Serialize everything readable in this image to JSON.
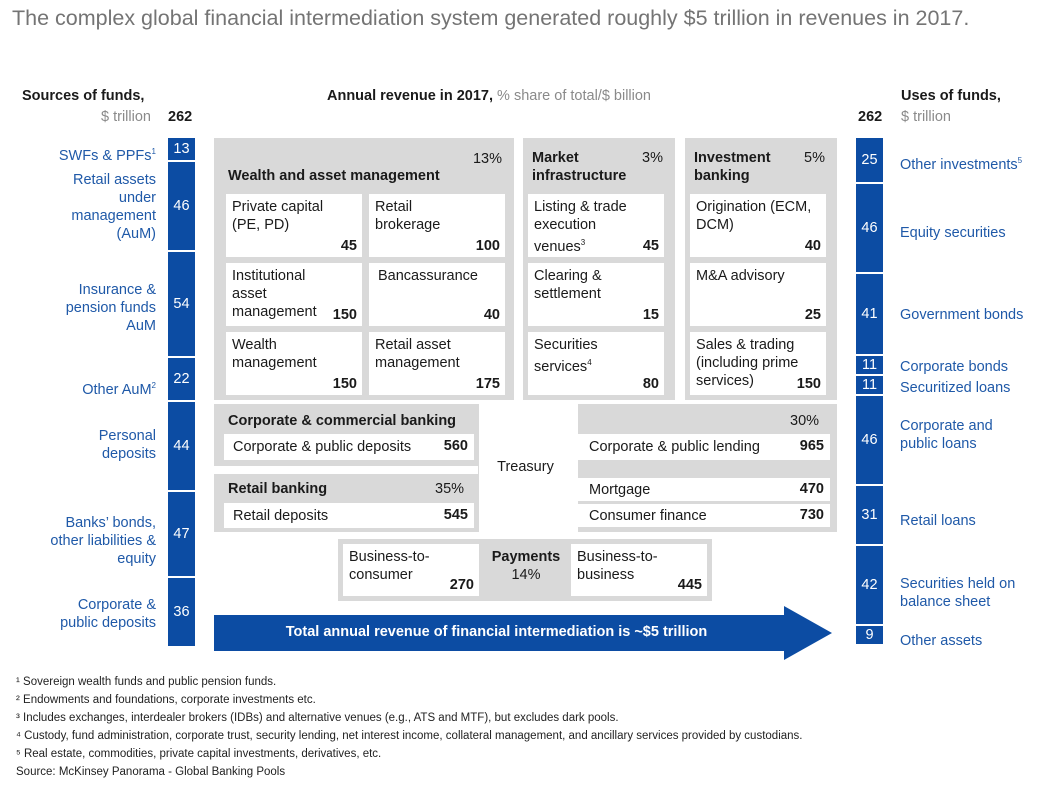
{
  "title": "The complex global financial intermediation system generated roughly $5 trillion in revenues in 2017.",
  "left_header": {
    "label": "Sources of funds,",
    "unit": "$ trillion",
    "total": "262"
  },
  "center_header": {
    "label": "Annual revenue in 2017,",
    "sublabel": "% share of total/$ billion"
  },
  "right_header": {
    "label": "Uses of funds,",
    "unit": "$ trillion",
    "total": "262"
  },
  "sources": [
    {
      "label": "SWFs & PPFs",
      "sup": "1",
      "value": "13"
    },
    {
      "label": "Retail assets under management (AuM)",
      "value": "46"
    },
    {
      "label": "Insurance & pension funds AuM",
      "value": "54"
    },
    {
      "label": "Other AuM",
      "sup": "2",
      "value": "22"
    },
    {
      "label": "Personal deposits",
      "value": "44"
    },
    {
      "label": "Banks’ bonds, other liabilities & equity",
      "value": "47"
    },
    {
      "label": "Corporate & public deposits",
      "value": "36"
    }
  ],
  "uses": [
    {
      "label": "Other investments",
      "sup": "5",
      "value": "25"
    },
    {
      "label": "Equity securities",
      "value": "46"
    },
    {
      "label": "Government bonds",
      "value": "41"
    },
    {
      "label": "Corporate bonds",
      "value": "11"
    },
    {
      "label": "Securitized loans",
      "value": "11"
    },
    {
      "label": "Corporate and public loans",
      "value": "46"
    },
    {
      "label": "Retail loans",
      "value": "31"
    },
    {
      "label": "Securities held on balance sheet",
      "value": "42"
    },
    {
      "label": "Other assets",
      "value": "9"
    }
  ],
  "wam": {
    "title": "Wealth and asset management",
    "pct": "13%",
    "cells": [
      {
        "label": "Private capital (PE, PD)",
        "value": "45"
      },
      {
        "label": "Retail brokerage",
        "value": "100"
      },
      {
        "label": "Institutional asset management",
        "value": "150"
      },
      {
        "label": "Bancassurance",
        "value": "40"
      },
      {
        "label": "Wealth management",
        "value": "150"
      },
      {
        "label": "Retail asset management",
        "value": "175"
      }
    ]
  },
  "mi": {
    "title": "Market infrastructure",
    "pct": "3%",
    "cells": [
      {
        "label": "Listing & trade execution venues",
        "sup": "3",
        "value": "45"
      },
      {
        "label": "Clearing & settlement",
        "value": "15"
      },
      {
        "label": "Securities services",
        "sup": "4",
        "value": "80"
      }
    ]
  },
  "ib": {
    "title": "Investment banking",
    "pct": "5%",
    "cells": [
      {
        "label": "Origination (ECM, DCM)",
        "value": "40"
      },
      {
        "label": "M&A advisory",
        "value": "25"
      },
      {
        "label": "Sales & trading (including prime services)",
        "value": "150"
      }
    ]
  },
  "ccb": {
    "title": "Corporate & commercial banking",
    "pct": "30%",
    "deposits_label": "Corporate & public deposits",
    "deposits_value": "560",
    "lending_label": "Corporate & public lending",
    "lending_value": "965"
  },
  "treasury": "Treasury",
  "rb": {
    "title": "Retail banking",
    "pct": "35%",
    "deposits_label": "Retail deposits",
    "deposits_value": "545",
    "mortgage_label": "Mortgage",
    "mortgage_value": "470",
    "consumer_label": "Consumer finance",
    "consumer_value": "730"
  },
  "payments": {
    "title": "Payments",
    "pct": "14%",
    "b2c_label": "Business-to-consumer",
    "b2c_value": "270",
    "b2b_label": "Business-to-business",
    "b2b_value": "445"
  },
  "arrow_text": "Total annual revenue of financial intermediation is ~$5 trillion",
  "footnotes": [
    "¹ Sovereign wealth funds and public pension funds.",
    "² Endowments and foundations, corporate investments etc.",
    "³ Includes exchanges, interdealer brokers (IDBs) and alternative venues (e.g., ATS and MTF), but excludes dark pools.",
    "⁴ Custody, fund administration, corporate trust, security lending, net interest income, collateral management, and ancillary services provided by custodians.",
    "⁵ Real estate, commodities, private capital investments, derivatives, etc."
  ],
  "source": "Source: McKinsey Panorama - Global Banking Pools",
  "colors": {
    "blue": "#0c4ca3",
    "label_blue": "#1f59a8",
    "grey": "#d9d9d9"
  }
}
